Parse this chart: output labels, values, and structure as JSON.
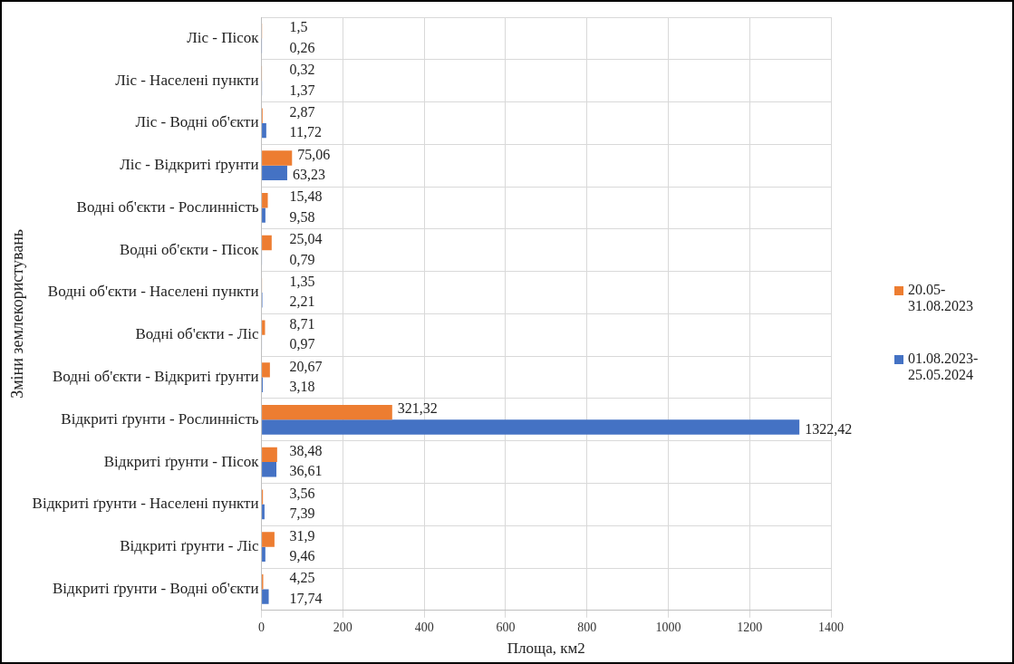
{
  "chart_data": {
    "type": "bar",
    "orientation": "horizontal",
    "ylabel": "Зміни землекористувань",
    "xlabel": "Площа, км2",
    "categories": [
      "Ліс - Пісок",
      "Ліс - Населені пункти",
      "Ліс - Водні об'єкти",
      "Ліс - Відкриті ґрунти",
      "Водні об'єкти - Рослинність",
      "Водні об'єкти - Пісок",
      "Водні об'єкти - Населені пункти",
      "Водні об'єкти - Ліс",
      "Водні об'єкти - Відкриті ґрунти",
      "Відкриті ґрунти - Рослинність",
      "Відкриті ґрунти - Пісок",
      "Відкриті ґрунти - Населені пункти",
      "Відкриті ґрунти - Ліс",
      "Відкриті ґрунти - Водні об'єкти"
    ],
    "series": [
      {
        "name": "20.05-31.08.2023",
        "color": "#ed7d31",
        "values": [
          1.5,
          0.32,
          2.87,
          75.06,
          15.48,
          25.04,
          1.35,
          8.71,
          20.67,
          321.32,
          38.48,
          3.56,
          31.9,
          4.25
        ],
        "value_labels": [
          "1,5",
          "0,32",
          "2,87",
          "75,06",
          "15,48",
          "25,04",
          "1,35",
          "8,71",
          "20,67",
          "321,32",
          "38,48",
          "3,56",
          "31,9",
          "4,25"
        ]
      },
      {
        "name": "01.08.2023-25.05.2024",
        "color": "#4472c4",
        "values": [
          0.26,
          1.37,
          11.72,
          63.23,
          9.58,
          0.79,
          2.21,
          0.97,
          3.18,
          1322.42,
          36.61,
          7.39,
          9.46,
          17.74
        ],
        "value_labels": [
          "0,26",
          "1,37",
          "11,72",
          "63,23",
          "9,58",
          "0,79",
          "2,21",
          "0,97",
          "3,18",
          "1322,42",
          "36,61",
          "7,39",
          "9,46",
          "17,74"
        ]
      }
    ],
    "xlim": [
      0,
      1400
    ],
    "xticks": [
      0,
      200,
      400,
      600,
      800,
      1000,
      1200,
      1400
    ],
    "grid": true,
    "legend": "right"
  }
}
